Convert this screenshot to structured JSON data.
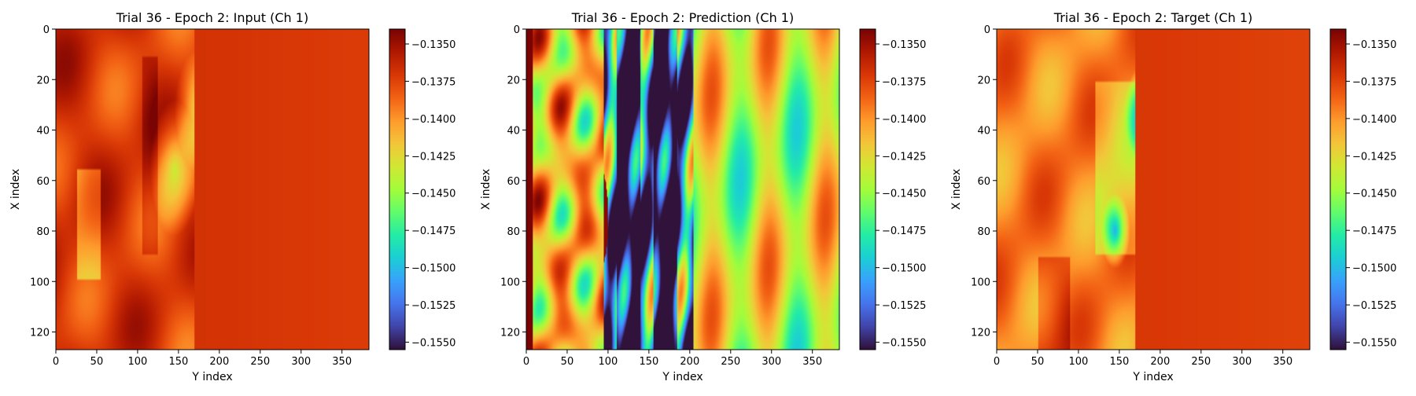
{
  "figure": {
    "colormap": "turbo",
    "colorbar_ticks": [
      "−0.1350",
      "−0.1375",
      "−0.1400",
      "−0.1425",
      "−0.1450",
      "−0.1475",
      "−0.1500",
      "−0.1525",
      "−0.1550"
    ]
  },
  "chart_data": [
    {
      "type": "heatmap",
      "title": "Trial 36 - Epoch 2: Input (Ch 1)",
      "xlabel": "Y index",
      "ylabel": "X index",
      "xticks": [
        "0",
        "50",
        "100",
        "150",
        "200",
        "250",
        "300",
        "350"
      ],
      "yticks": [
        "0",
        "20",
        "40",
        "60",
        "80",
        "100",
        "120"
      ],
      "xlim": [
        0,
        383
      ],
      "ylim": [
        127,
        0
      ],
      "vmin": -0.1555,
      "vmax": -0.134
    },
    {
      "type": "heatmap",
      "title": "Trial 36 - Epoch 2: Prediction (Ch 1)",
      "xlabel": "Y index",
      "ylabel": "X index",
      "xticks": [
        "0",
        "50",
        "100",
        "150",
        "200",
        "250",
        "300",
        "350"
      ],
      "yticks": [
        "0",
        "20",
        "40",
        "60",
        "80",
        "100",
        "120"
      ],
      "xlim": [
        0,
        383
      ],
      "ylim": [
        127,
        0
      ],
      "vmin": -0.1555,
      "vmax": -0.134
    },
    {
      "type": "heatmap",
      "title": "Trial 36 - Epoch 2: Target (Ch 1)",
      "xlabel": "Y index",
      "ylabel": "X index",
      "xticks": [
        "0",
        "50",
        "100",
        "150",
        "200",
        "250",
        "300",
        "350"
      ],
      "yticks": [
        "0",
        "20",
        "40",
        "60",
        "80",
        "100",
        "120"
      ],
      "xlim": [
        0,
        383
      ],
      "ylim": [
        127,
        0
      ],
      "vmin": -0.1555,
      "vmax": -0.134
    }
  ]
}
